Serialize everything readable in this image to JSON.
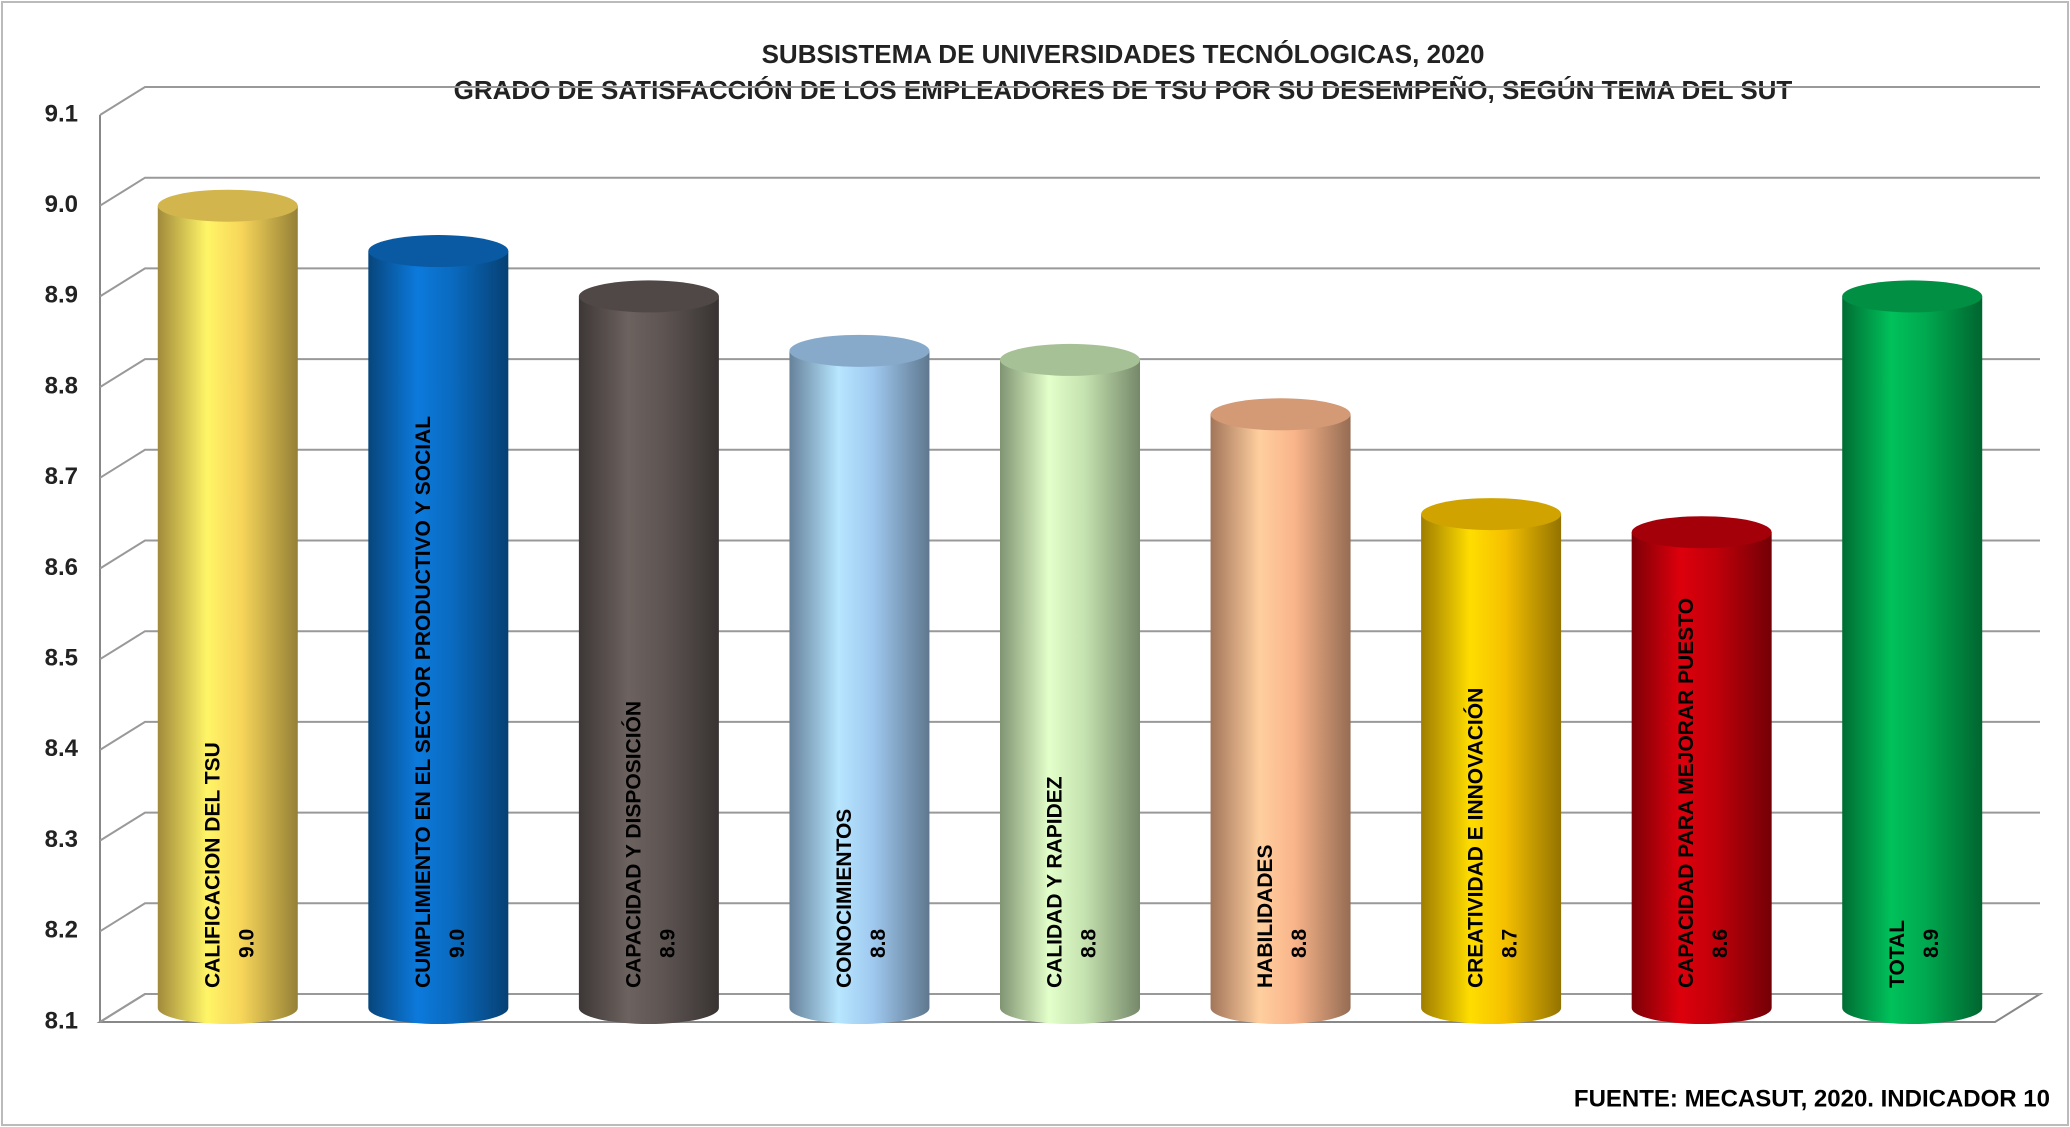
{
  "chart_data": {
    "type": "bar",
    "title": "SUBSISTEMA DE UNIVERSIDADES TECNÓLOGICAS, 2020",
    "subtitle": "GRADO DE SATISFACCIÓN DE LOS EMPLEADORES DE TSU POR SU DESEMPEÑO, SEGÚN TEMA DEL SUT",
    "source": "FUENTE: MECASUT, 2020. INDICADOR 10",
    "categories": [
      "CALIFICACION DEL TSU",
      "CUMPLIMIENTO EN EL SECTOR PRODUCTIVO Y SOCIAL",
      "CAPACIDAD Y DISPOSICIÓN",
      "CONOCIMIENTOS",
      "CALIDAD Y RAPIDEZ",
      "HABILIDADES",
      "CREATIVIDAD E INNOVACIÓN",
      "CAPACIDAD PARA MEJORAR PUESTO",
      "TOTAL"
    ],
    "values": [
      9.0,
      8.95,
      8.9,
      8.84,
      8.83,
      8.77,
      8.66,
      8.64,
      8.9
    ],
    "value_labels": [
      "9.0",
      "9.0",
      "8.9",
      "8.8",
      "8.8",
      "8.8",
      "8.7",
      "8.6",
      "8.9"
    ],
    "colors": [
      "#f7d55a",
      "#0a6abf",
      "#5e5553",
      "#9fc8ef",
      "#c5e3b0",
      "#f9b48a",
      "#f5c000",
      "#c0000a",
      "#00a84f"
    ],
    "ylim": [
      8.1,
      9.1
    ],
    "yticks": [
      8.1,
      8.2,
      8.3,
      8.4,
      8.5,
      8.6,
      8.7,
      8.8,
      8.9,
      {
        "value": 9,
        "label": "9.0"
      },
      9.1
    ],
    "grid": true
  }
}
